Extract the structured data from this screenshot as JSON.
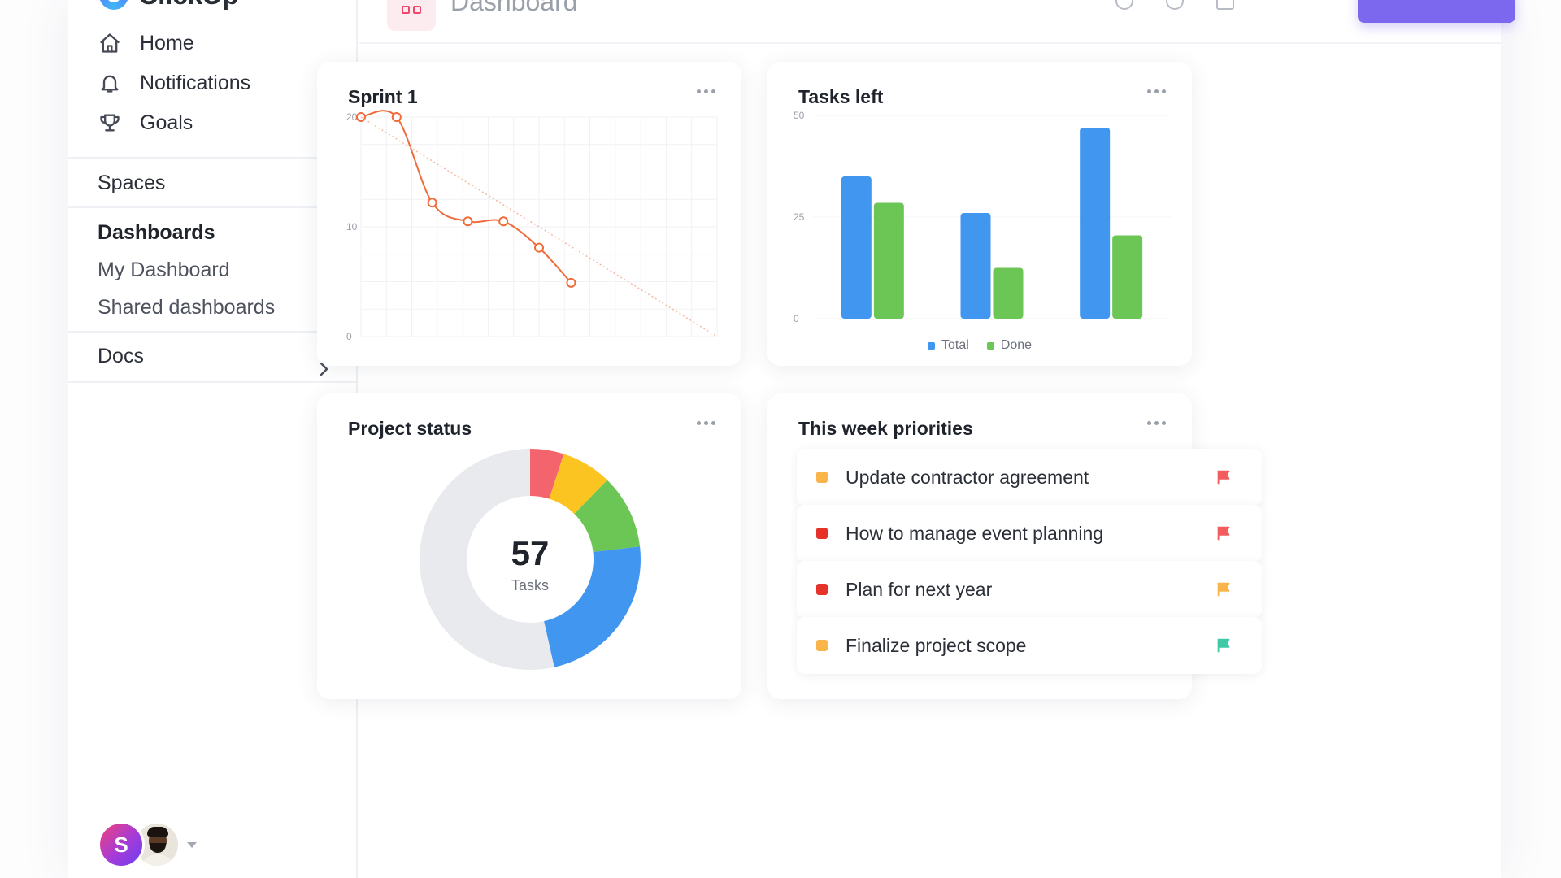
{
  "app": {
    "name": "ClickUp"
  },
  "sidebar": {
    "nav": [
      {
        "label": "Home",
        "icon": "home-icon"
      },
      {
        "label": "Notifications",
        "icon": "bell-icon"
      },
      {
        "label": "Goals",
        "icon": "trophy-icon"
      }
    ],
    "spaces_label": "Spaces",
    "dashboards_label": "Dashboards",
    "dashboards_items": [
      "My Dashboard",
      "Shared dashboards"
    ],
    "docs_label": "Docs",
    "user_initial": "S"
  },
  "header": {
    "title": "Dashboard"
  },
  "cards": {
    "sprint": {
      "title": "Sprint 1"
    },
    "tasks_left": {
      "title": "Tasks left"
    },
    "project_status": {
      "title": "Project status",
      "center_value": "57",
      "center_label": "Tasks"
    },
    "priorities": {
      "title": "This week priorities",
      "items": [
        {
          "label": "Update contractor agreement",
          "dot_color": "#f9b44a",
          "flag_color": "#f25c5c"
        },
        {
          "label": "How to manage event planning",
          "dot_color": "#e5332a",
          "flag_color": "#f25c5c"
        },
        {
          "label": "Plan for next year",
          "dot_color": "#e5332a",
          "flag_color": "#f9b44a"
        },
        {
          "label": "Finalize project scope",
          "dot_color": "#f9b44a",
          "flag_color": "#3ec9a7"
        }
      ]
    }
  },
  "chart_data": [
    {
      "type": "line",
      "title": "Sprint 1",
      "yticks": [
        0,
        10,
        20
      ],
      "ylim": [
        0,
        20
      ],
      "xlim": [
        0,
        10
      ],
      "series": [
        {
          "values": [
            [
              0,
              20
            ],
            [
              1,
              20
            ],
            [
              2,
              12.2
            ],
            [
              3,
              10.5
            ],
            [
              4,
              10.5
            ],
            [
              5,
              8.1
            ],
            [
              5.9,
              4.9
            ]
          ],
          "color": "#f06a3a"
        },
        {
          "values": [
            [
              0,
              20
            ],
            [
              10,
              0
            ]
          ],
          "color": "#f7b9a3",
          "dashed": true
        }
      ],
      "grid": true
    },
    {
      "type": "bar",
      "title": "Tasks left",
      "categories": [
        "",
        "",
        ""
      ],
      "yticks": [
        0,
        25,
        50
      ],
      "ylim": [
        0,
        50
      ],
      "series": [
        {
          "name": "Total",
          "values": [
            35,
            26,
            47
          ],
          "color": "#4196f0"
        },
        {
          "name": "Done",
          "values": [
            28.5,
            12.5,
            20.5
          ],
          "color": "#6cc655"
        }
      ],
      "legend": "bottom",
      "grid": true
    },
    {
      "type": "pie",
      "title": "Project status",
      "center_value": 57,
      "slices": [
        {
          "value": 2.8,
          "color": "#f4646c"
        },
        {
          "value": 4.2,
          "color": "#fbc421"
        },
        {
          "value": 6.2,
          "color": "#6cc655"
        },
        {
          "value": 13.3,
          "color": "#4196f0"
        },
        {
          "value": 30.5,
          "color": "#e9eaed"
        }
      ]
    }
  ]
}
